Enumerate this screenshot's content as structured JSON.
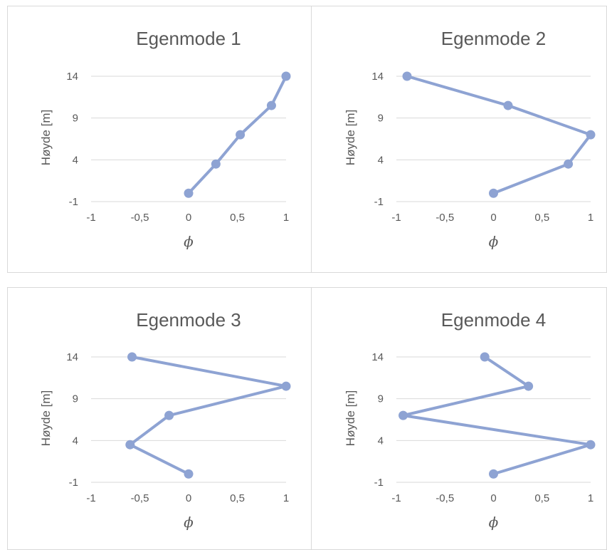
{
  "chart_data": [
    {
      "type": "scatter",
      "title": "Egenmode 1",
      "xlabel": "ϕ",
      "ylabel": "Høyde [m]",
      "xlim": [
        -1,
        1
      ],
      "ylim": [
        -1,
        14
      ],
      "xticks": [
        "-1",
        "-0,5",
        "0",
        "0,5",
        "1"
      ],
      "yticks": [
        "-1",
        "4",
        "9",
        "14"
      ],
      "grid": true,
      "color": "#8EA3D3",
      "points": [
        [
          0,
          0
        ],
        [
          0.28,
          3.5
        ],
        [
          0.53,
          7
        ],
        [
          0.85,
          10.5
        ],
        [
          1.0,
          14
        ]
      ]
    },
    {
      "type": "scatter",
      "title": "Egenmode 2",
      "xlabel": "ϕ",
      "ylabel": "Høyde [m]",
      "xlim": [
        -1,
        1
      ],
      "ylim": [
        -1,
        14
      ],
      "xticks": [
        "-1",
        "-0,5",
        "0",
        "0,5",
        "1"
      ],
      "yticks": [
        "-1",
        "4",
        "9",
        "14"
      ],
      "grid": true,
      "color": "#8EA3D3",
      "points": [
        [
          0,
          0
        ],
        [
          0.77,
          3.5
        ],
        [
          1.0,
          7
        ],
        [
          0.15,
          10.5
        ],
        [
          -0.89,
          14
        ]
      ]
    },
    {
      "type": "scatter",
      "title": "Egenmode 3",
      "xlabel": "ϕ",
      "ylabel": "Høyde [m]",
      "xlim": [
        -1,
        1
      ],
      "ylim": [
        -1,
        14
      ],
      "xticks": [
        "-1",
        "-0,5",
        "0",
        "0,5",
        "1"
      ],
      "yticks": [
        "-1",
        "4",
        "9",
        "14"
      ],
      "grid": true,
      "color": "#8EA3D3",
      "points": [
        [
          0,
          0
        ],
        [
          -0.6,
          3.5
        ],
        [
          -0.2,
          7
        ],
        [
          1.0,
          10.5
        ],
        [
          -0.58,
          14
        ]
      ]
    },
    {
      "type": "scatter",
      "title": "Egenmode 4",
      "xlabel": "ϕ",
      "ylabel": "Høyde [m]",
      "xlim": [
        -1,
        1
      ],
      "ylim": [
        -1,
        14
      ],
      "xticks": [
        "-1",
        "-0,5",
        "0",
        "0,5",
        "1"
      ],
      "yticks": [
        "-1",
        "4",
        "9",
        "14"
      ],
      "grid": true,
      "color": "#8EA3D3",
      "points": [
        [
          0,
          0
        ],
        [
          1.0,
          3.5
        ],
        [
          -0.93,
          7
        ],
        [
          0.36,
          10.5
        ],
        [
          -0.09,
          14
        ]
      ]
    }
  ]
}
